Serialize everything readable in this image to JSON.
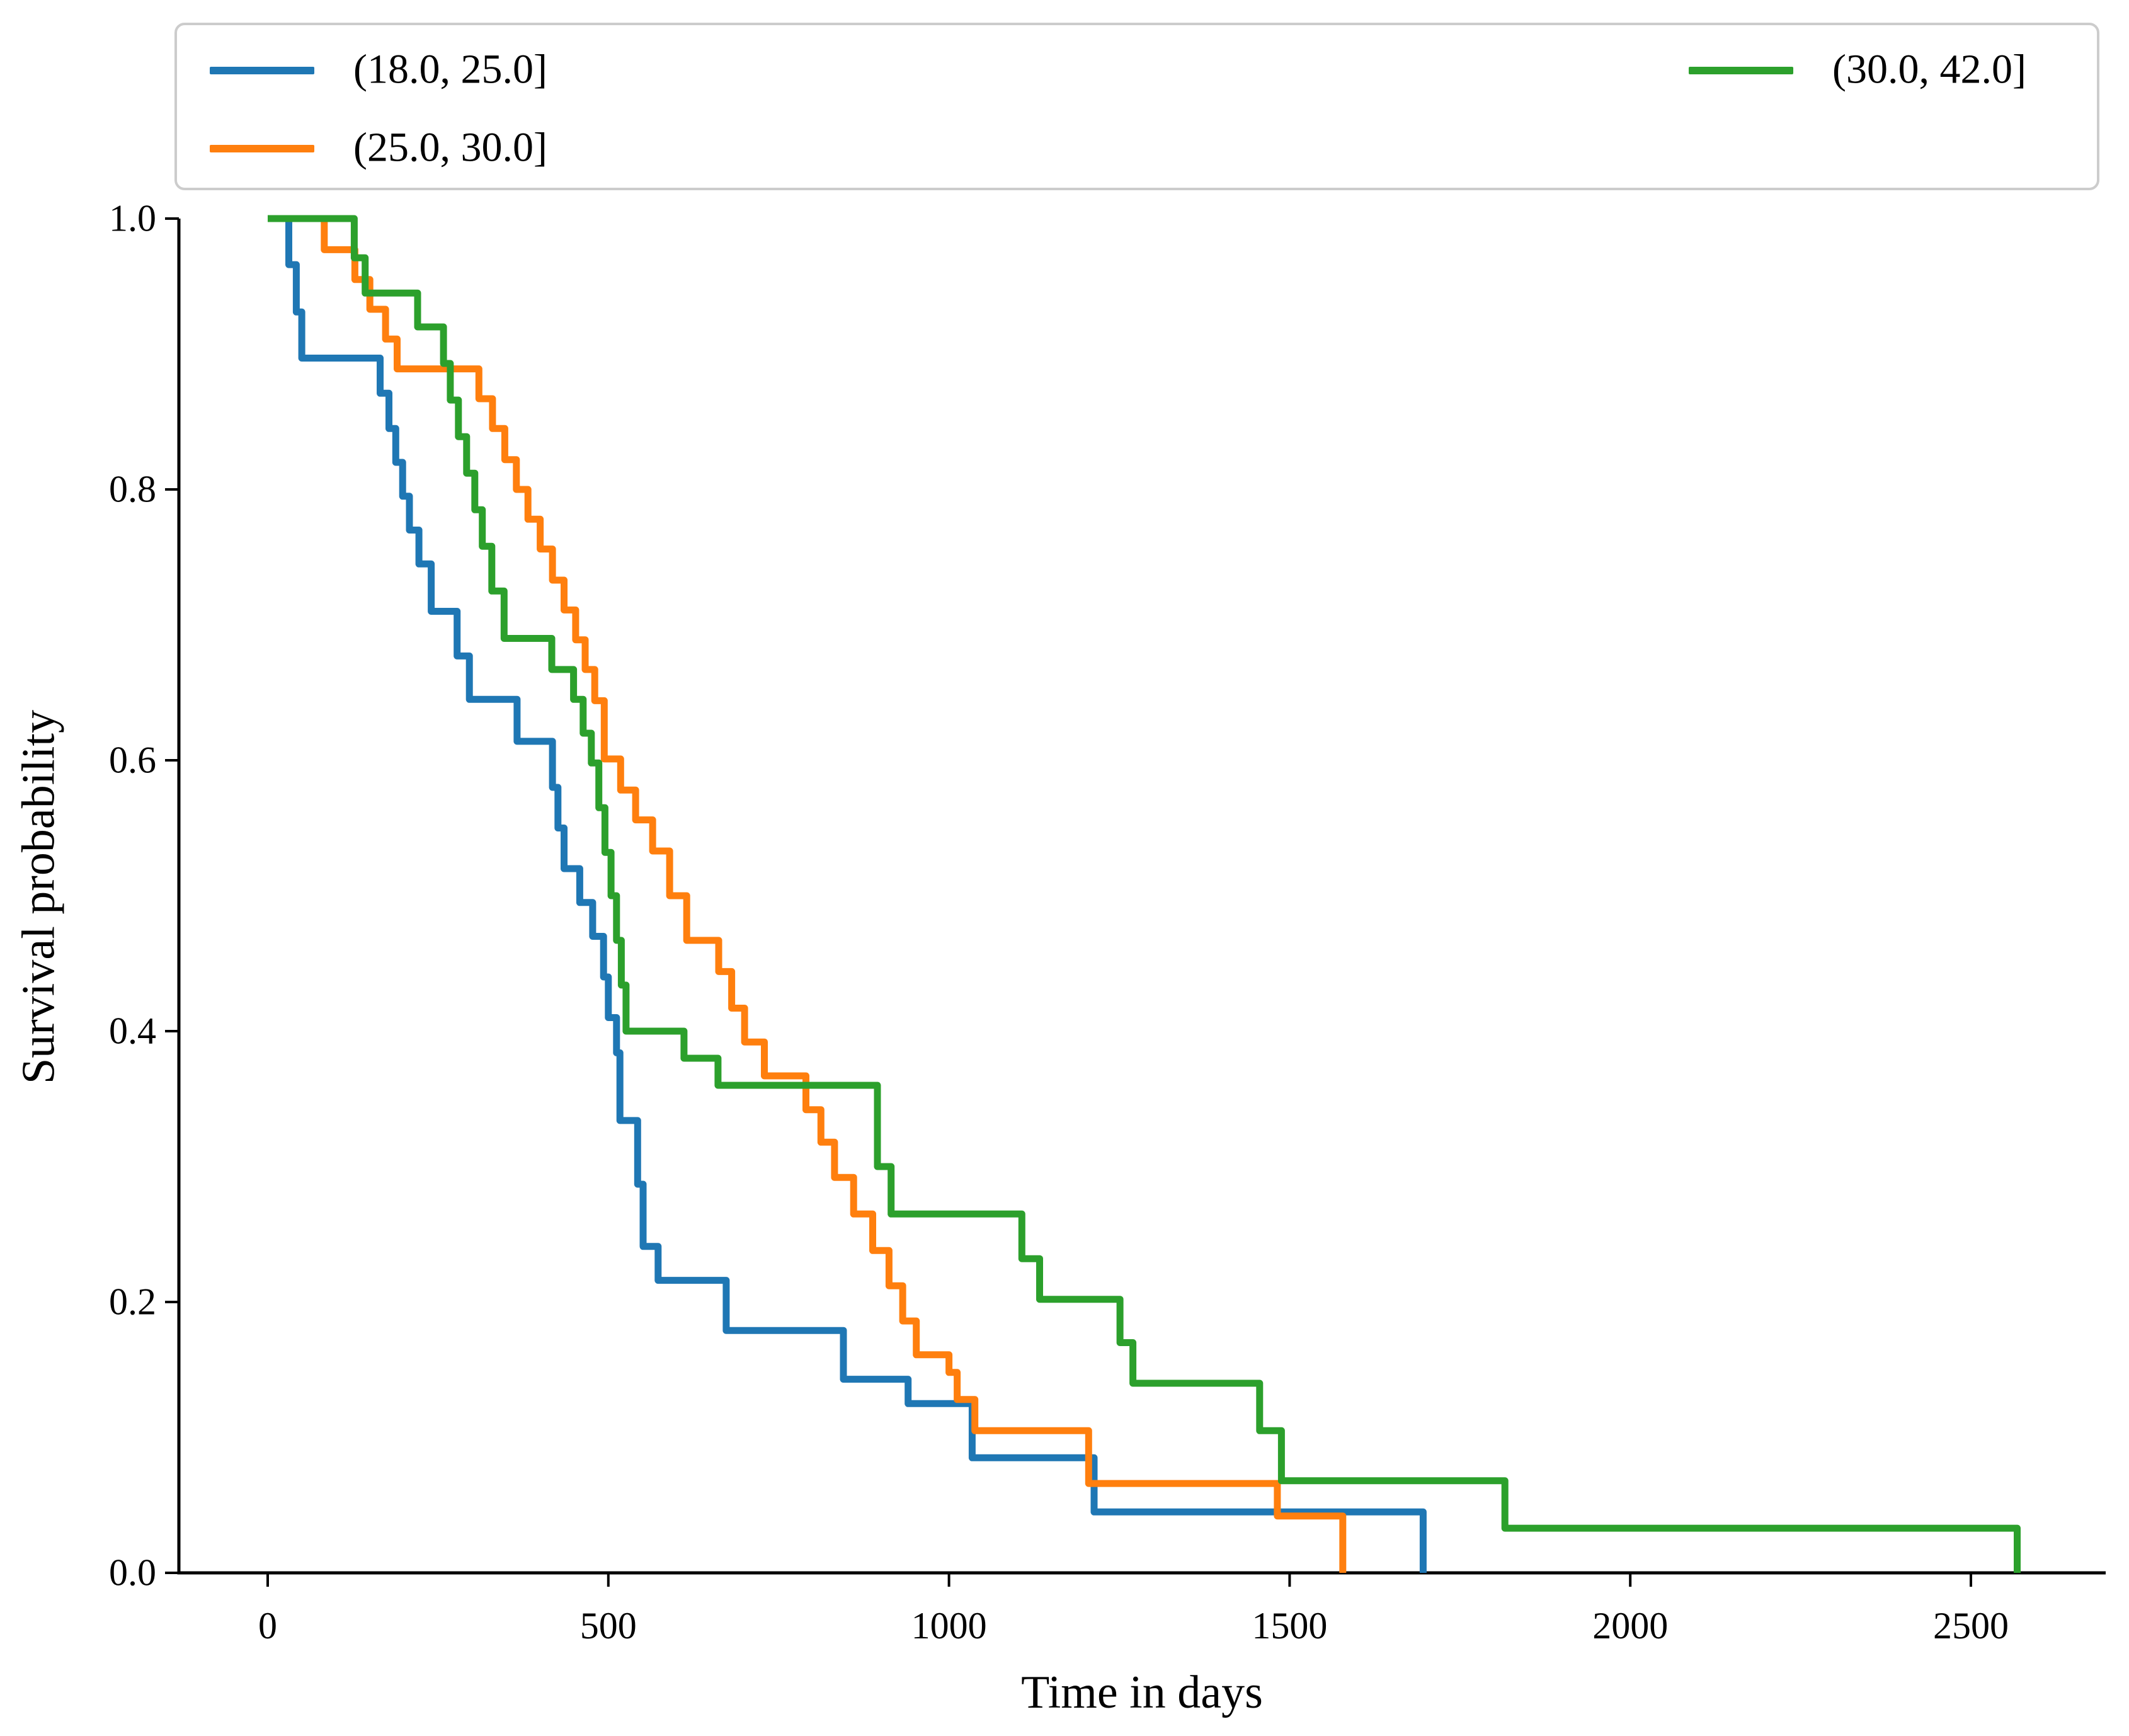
{
  "figure": {
    "background": "#ffffff"
  },
  "axes": {
    "xlabel": "Time in days",
    "ylabel": "Survival probability",
    "xtick_labels": [
      "0",
      "500",
      "1000",
      "1500",
      "2000",
      "2500"
    ],
    "xtick_values": [
      0,
      500,
      1000,
      1500,
      2000,
      2500
    ],
    "ytick_labels": [
      "0.0",
      "0.2",
      "0.4",
      "0.6",
      "0.8",
      "1.0"
    ],
    "ytick_values": [
      0.0,
      0.2,
      0.4,
      0.6,
      0.8,
      1.0
    ],
    "spine_color": "#000000"
  },
  "legend": {
    "items": [
      {
        "label": "(18.0, 25.0]",
        "color": "#1f77b4"
      },
      {
        "label": "(25.0, 30.0]",
        "color": "#ff7f0e"
      },
      {
        "label": "(30.0, 42.0]",
        "color": "#2ca02c"
      }
    ]
  },
  "chart_data": {
    "type": "line",
    "subtype": "kaplan-meier-step",
    "step_mode": "post",
    "title": "",
    "xlabel": "Time in days",
    "ylabel": "Survival probability",
    "xlim": [
      0,
      2698
    ],
    "ylim": [
      0,
      1
    ],
    "grid": false,
    "legend_position": "top, expanded, 2 columns",
    "series": [
      {
        "name": "(18.0, 25.0]",
        "color": "#1f77b4",
        "x": [
          0,
          31,
          42,
          50,
          165,
          178,
          188,
          198,
          208,
          222,
          240,
          278,
          296,
          366,
          418,
          426,
          435,
          458,
          477,
          493,
          500,
          512,
          517,
          543,
          551,
          573,
          673,
          845,
          940,
          1034,
          1213,
          1696
        ],
        "y": [
          1.0,
          0.966,
          0.931,
          0.897,
          0.871,
          0.845,
          0.82,
          0.795,
          0.77,
          0.745,
          0.71,
          0.677,
          0.645,
          0.614,
          0.58,
          0.55,
          0.52,
          0.495,
          0.47,
          0.44,
          0.41,
          0.384,
          0.334,
          0.287,
          0.241,
          0.216,
          0.179,
          0.143,
          0.125,
          0.085,
          0.045,
          0.0
        ]
      },
      {
        "name": "(25.0, 30.0]",
        "color": "#ff7f0e",
        "x": [
          0,
          83,
          128,
          150,
          173,
          190,
          310,
          330,
          348,
          365,
          382,
          400,
          418,
          435,
          452,
          466,
          480,
          494,
          518,
          540,
          565,
          590,
          615,
          662,
          681,
          700,
          729,
          790,
          812,
          832,
          860,
          888,
          912,
          932,
          952,
          1000,
          1012,
          1038,
          1205,
          1482,
          1578
        ],
        "y": [
          1.0,
          0.977,
          0.955,
          0.933,
          0.911,
          0.889,
          0.867,
          0.845,
          0.822,
          0.8,
          0.778,
          0.756,
          0.733,
          0.711,
          0.689,
          0.667,
          0.644,
          0.601,
          0.578,
          0.556,
          0.533,
          0.5,
          0.467,
          0.444,
          0.417,
          0.392,
          0.367,
          0.342,
          0.318,
          0.292,
          0.265,
          0.238,
          0.212,
          0.186,
          0.161,
          0.148,
          0.128,
          0.105,
          0.066,
          0.042,
          0.0
        ]
      },
      {
        "name": "(30.0, 42.0]",
        "color": "#2ca02c",
        "x": [
          0,
          127,
          143,
          220,
          258,
          268,
          280,
          292,
          304,
          315,
          329,
          347,
          417,
          449,
          463,
          475,
          486,
          495,
          504,
          512,
          519,
          526,
          611,
          661,
          895,
          915,
          1107,
          1133,
          1251,
          1270,
          1456,
          1488,
          1816,
          2568
        ],
        "y": [
          1.0,
          0.971,
          0.945,
          0.92,
          0.893,
          0.866,
          0.839,
          0.812,
          0.785,
          0.758,
          0.725,
          0.69,
          0.667,
          0.645,
          0.62,
          0.598,
          0.565,
          0.532,
          0.5,
          0.467,
          0.434,
          0.4,
          0.38,
          0.36,
          0.3,
          0.265,
          0.232,
          0.202,
          0.17,
          0.14,
          0.105,
          0.068,
          0.033,
          0.0
        ]
      }
    ]
  }
}
